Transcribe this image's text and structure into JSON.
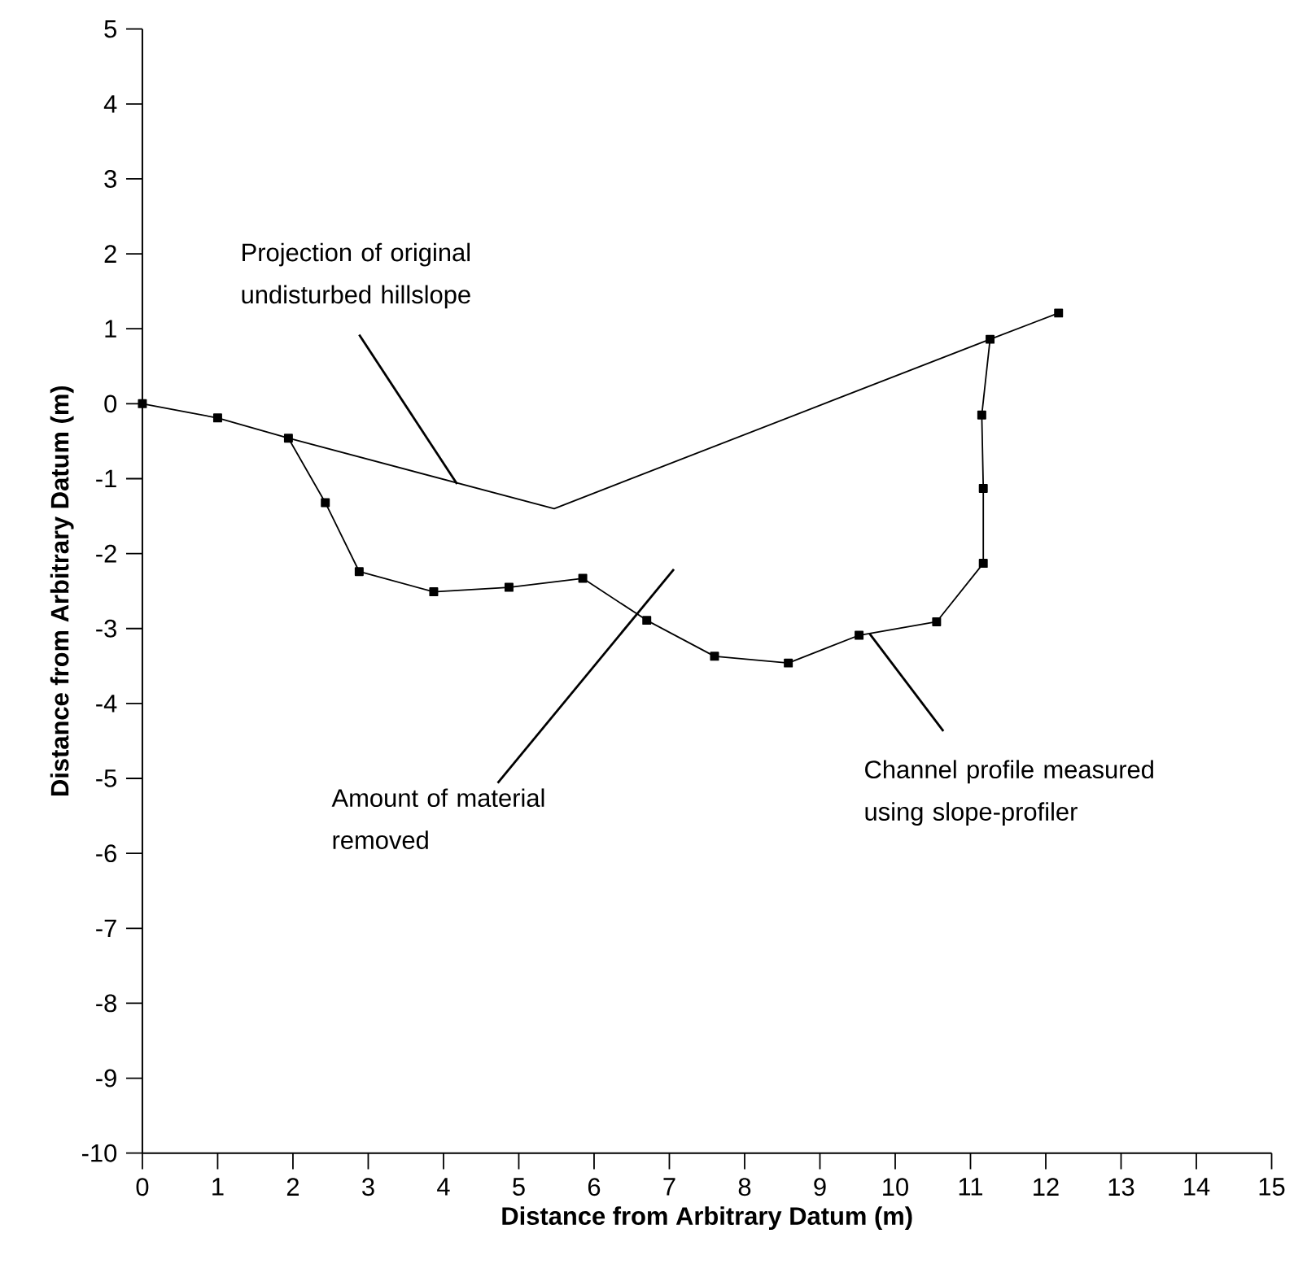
{
  "chart_data": {
    "type": "line",
    "xlabel": "Distance from Arbitrary Datum (m)",
    "ylabel": "Distance from Arbitrary Datum (m)",
    "xlim": [
      0,
      15
    ],
    "ylim": [
      -10,
      5
    ],
    "xticks": [
      0,
      1,
      2,
      3,
      4,
      5,
      6,
      7,
      8,
      9,
      10,
      11,
      12,
      13,
      14,
      15
    ],
    "yticks": [
      -10,
      -9,
      -8,
      -7,
      -6,
      -5,
      -4,
      -3,
      -2,
      -1,
      0,
      1,
      2,
      3,
      4,
      5
    ],
    "grid": false,
    "series": [
      {
        "color": "#000000",
        "marker": "square",
        "x": [
          0,
          1.0,
          1.94,
          2.43,
          2.88,
          3.87,
          4.87,
          5.85,
          6.7,
          7.6,
          8.58,
          9.52,
          10.55,
          11.17,
          11.17,
          11.15,
          11.26,
          12.17
        ],
        "values": [
          0,
          -0.19,
          -0.46,
          -1.32,
          -2.24,
          -2.51,
          -2.45,
          -2.33,
          -2.89,
          -3.37,
          -3.46,
          -3.09,
          -2.91,
          -2.13,
          -1.13,
          -0.15,
          0.86,
          1.21
        ]
      },
      {
        "color": "#000000",
        "marker": "none",
        "x": [
          1.94,
          5.47,
          11.26
        ],
        "values": [
          -0.46,
          -1.4,
          0.86
        ]
      }
    ],
    "annotations": [
      {
        "text": "Projection of original undisturbed hillslope",
        "x": 4.18,
        "y": -1.07
      },
      "Amount of material removed",
      {
        "text": "Channel profile measured using slope-profiler",
        "x": 9.66,
        "y": -3.07
      }
    ]
  }
}
